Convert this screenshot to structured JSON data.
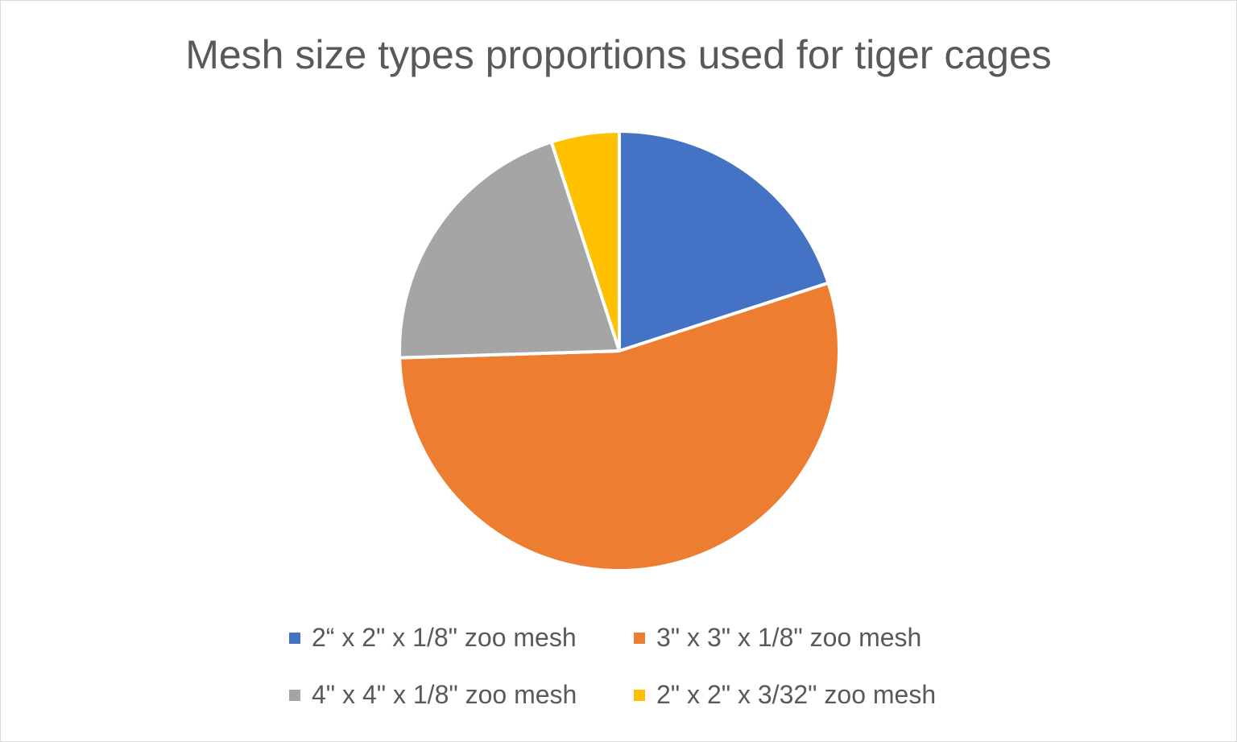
{
  "chart_data": {
    "type": "pie",
    "title": "Mesh size types proportions used for tiger cages",
    "categories": [
      "2“ x 2\" x 1/8\" zoo mesh",
      "3\" x 3\" x 1/8\" zoo mesh",
      "4\" x 4\" x 1/8\" zoo mesh",
      "2\" x 2\" x 3/32\" zoo mesh"
    ],
    "values": [
      20,
      54.5,
      20.5,
      5
    ],
    "colors": [
      "#4472c4",
      "#ed7d31",
      "#a5a5a5",
      "#ffc000"
    ],
    "legend": "bottom"
  }
}
